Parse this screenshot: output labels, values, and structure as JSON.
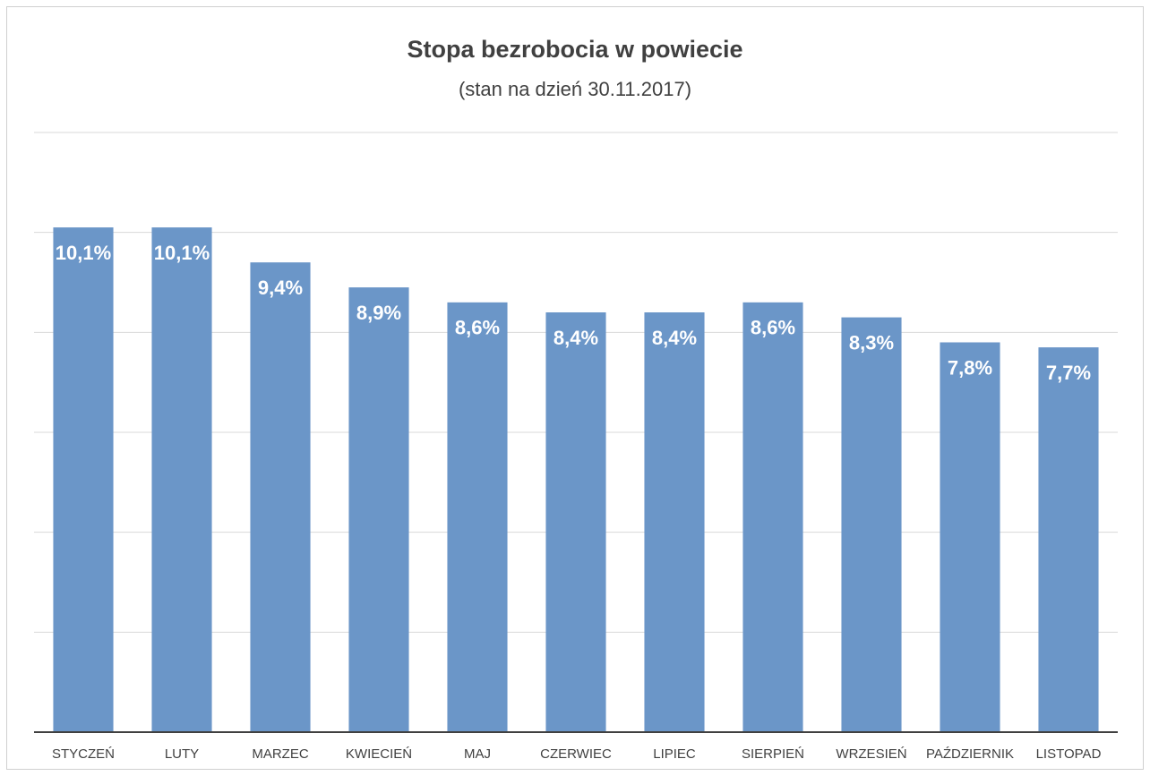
{
  "chart_data": {
    "type": "bar",
    "title": "Stopa bezrobocia w powiecie",
    "subtitle": "(stan na dzień 30.11.2017)",
    "categories": [
      "STYCZEŃ",
      "LUTY",
      "MARZEC",
      "KWIECIEŃ",
      "MAJ",
      "CZERWIEC",
      "LIPIEC",
      "SIERPIEŃ",
      "WRZESIEŃ",
      "PAŹDZIERNIK",
      "LISTOPAD"
    ],
    "values": [
      10.1,
      10.1,
      9.4,
      8.9,
      8.6,
      8.4,
      8.4,
      8.6,
      8.3,
      7.8,
      7.7
    ],
    "value_labels": [
      "10,1%",
      "10,1%",
      "9,4%",
      "8,9%",
      "8,6%",
      "8,4%",
      "8,4%",
      "8,6%",
      "8,3%",
      "7,8%",
      "7,7%"
    ],
    "color": "#6b96c8",
    "ylim": [
      0,
      12
    ],
    "yticks": [
      0,
      2,
      4,
      6,
      8,
      10,
      12
    ],
    "grid": true
  }
}
